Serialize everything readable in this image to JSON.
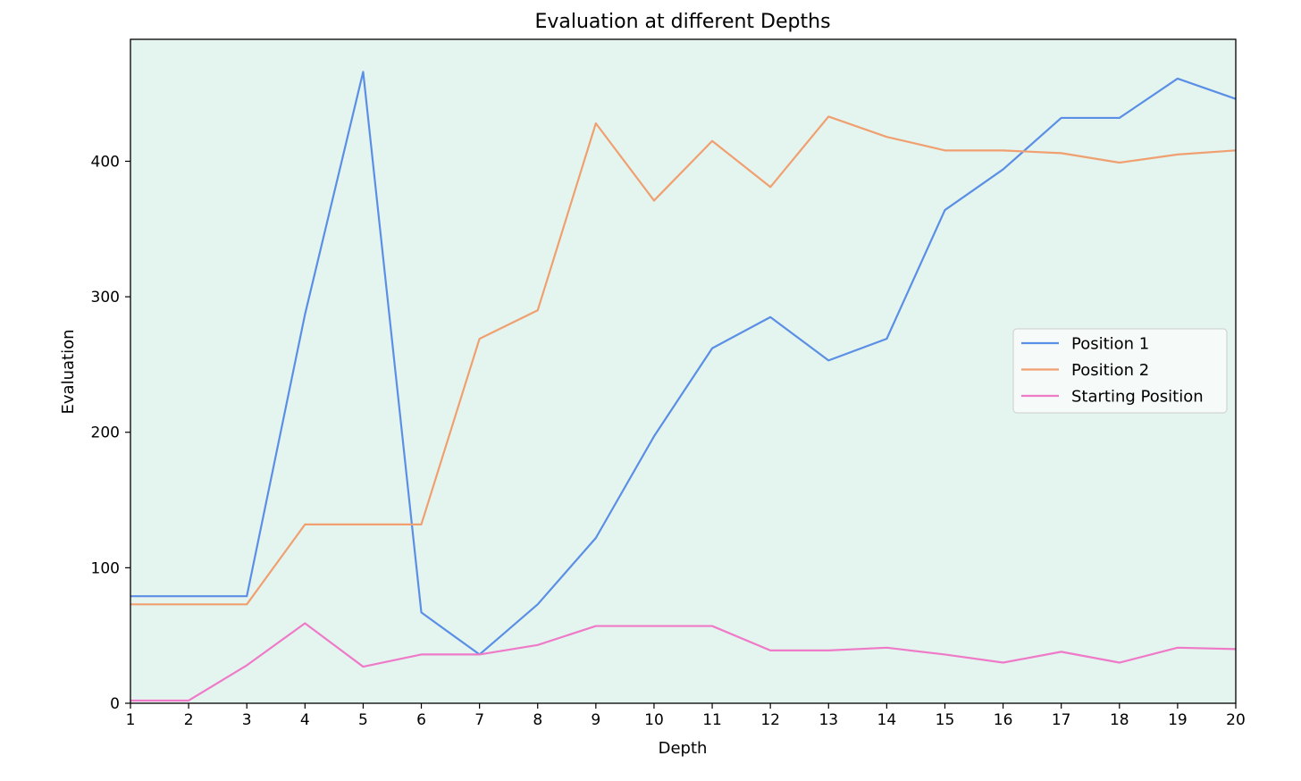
{
  "chart_data": {
    "type": "line",
    "title": "Evaluation at different Depths",
    "xlabel": "Depth",
    "ylabel": "Evaluation",
    "x": [
      1,
      2,
      3,
      4,
      5,
      6,
      7,
      8,
      9,
      10,
      11,
      12,
      13,
      14,
      15,
      16,
      17,
      18,
      19,
      20
    ],
    "xlim": [
      1,
      20
    ],
    "ylim": [
      0,
      490
    ],
    "xticks": [
      1,
      2,
      3,
      4,
      5,
      6,
      7,
      8,
      9,
      10,
      11,
      12,
      13,
      14,
      15,
      16,
      17,
      18,
      19,
      20
    ],
    "yticks": [
      0,
      100,
      200,
      300,
      400
    ],
    "grid": false,
    "legend_position": "center-right",
    "background_color": "#e4f5ef",
    "series": [
      {
        "name": "Position 1",
        "color": "#5b8fe6",
        "values": [
          79,
          79,
          79,
          287,
          466,
          67,
          36,
          73,
          122,
          197,
          262,
          285,
          253,
          269,
          364,
          394,
          432,
          432,
          461,
          446
        ]
      },
      {
        "name": "Position 2",
        "color": "#f0a070",
        "values": [
          73,
          73,
          73,
          132,
          132,
          132,
          269,
          290,
          428,
          371,
          415,
          381,
          433,
          418,
          408,
          408,
          406,
          399,
          405,
          408
        ]
      },
      {
        "name": "Starting Position",
        "color": "#ee7ac8",
        "values": [
          2,
          2,
          28,
          59,
          27,
          36,
          36,
          43,
          57,
          57,
          57,
          39,
          39,
          41,
          36,
          30,
          38,
          30,
          41,
          40
        ]
      }
    ]
  }
}
